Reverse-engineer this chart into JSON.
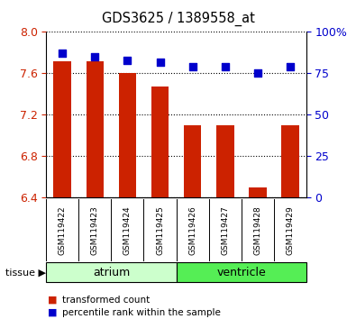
{
  "title": "GDS3625 / 1389558_at",
  "categories": [
    "GSM119422",
    "GSM119423",
    "GSM119424",
    "GSM119425",
    "GSM119426",
    "GSM119427",
    "GSM119428",
    "GSM119429"
  ],
  "bar_values": [
    7.72,
    7.72,
    7.6,
    7.47,
    7.1,
    7.1,
    6.5,
    7.1
  ],
  "dot_values": [
    87,
    85,
    83,
    82,
    79,
    79,
    75,
    79
  ],
  "ylim_left": [
    6.4,
    8.0
  ],
  "ylim_right": [
    0,
    100
  ],
  "yticks_left": [
    6.4,
    6.8,
    7.2,
    7.6,
    8.0
  ],
  "yticks_right": [
    0,
    25,
    50,
    75,
    100
  ],
  "ytick_labels_right": [
    "0",
    "25",
    "50",
    "75",
    "100%"
  ],
  "bar_color": "#cc2200",
  "dot_color": "#0000cc",
  "tissue_groups": [
    {
      "label": "atrium",
      "start": 0,
      "end": 4,
      "color": "#ccffcc"
    },
    {
      "label": "ventricle",
      "start": 4,
      "end": 8,
      "color": "#55ee55"
    }
  ],
  "legend_bar_label": "transformed count",
  "legend_dot_label": "percentile rank within the sample",
  "tissue_label": "tissue",
  "bar_width": 0.55,
  "background_color": "#ffffff",
  "gray_band_color": "#d0d0d0"
}
